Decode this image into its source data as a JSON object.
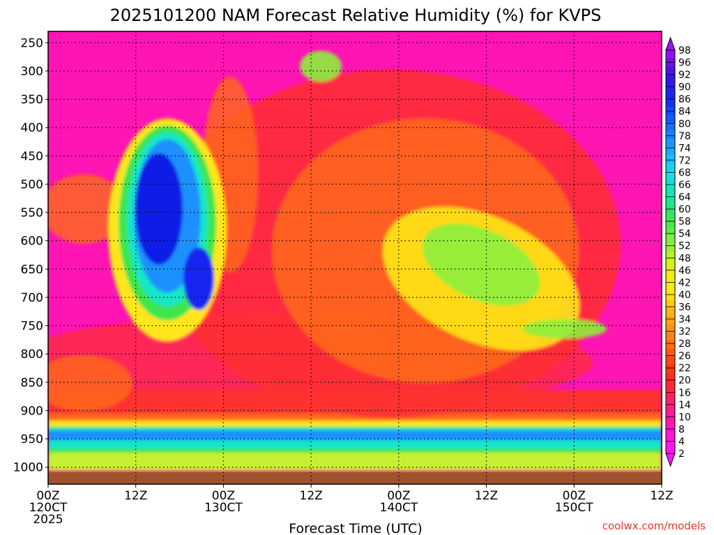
{
  "chart_data": {
    "type": "heatmap",
    "title": "2025101200 NAM Forecast Relative Humidity (%) for KVPS",
    "xlabel": "Forecast Time (UTC)",
    "ylabel": "",
    "x_ticks": [
      {
        "hours": 0,
        "lines": [
          "00Z",
          "120CT",
          "2025"
        ]
      },
      {
        "hours": 12,
        "lines": [
          "12Z"
        ]
      },
      {
        "hours": 24,
        "lines": [
          "00Z",
          "130CT"
        ]
      },
      {
        "hours": 36,
        "lines": [
          "12Z"
        ]
      },
      {
        "hours": 48,
        "lines": [
          "00Z",
          "140CT"
        ]
      },
      {
        "hours": 60,
        "lines": [
          "12Z"
        ]
      },
      {
        "hours": 72,
        "lines": [
          "00Z",
          "150CT"
        ]
      },
      {
        "hours": 84,
        "lines": [
          "12Z"
        ]
      }
    ],
    "xlim": [
      0,
      84
    ],
    "y_ticks": [
      "250",
      "300",
      "350",
      "400",
      "450",
      "500",
      "550",
      "600",
      "650",
      "700",
      "750",
      "800",
      "850",
      "900",
      "950",
      "1000"
    ],
    "ylim": [
      1000,
      200
    ],
    "colorbar_ticks": [
      "98",
      "96",
      "92",
      "90",
      "86",
      "84",
      "80",
      "78",
      "74",
      "72",
      "68",
      "66",
      "64",
      "60",
      "58",
      "54",
      "52",
      "48",
      "46",
      "42",
      "40",
      "36",
      "34",
      "32",
      "28",
      "26",
      "22",
      "20",
      "16",
      "14",
      "10",
      "8",
      "4",
      "2"
    ],
    "colorbar_range": [
      0,
      100
    ],
    "grid": true,
    "colorbar": "right",
    "colors": {
      "background_field": "#ff14b4",
      "ground": "#a0522d",
      "credit": "#e8342a"
    }
  },
  "credit": "coolwx.com/models"
}
